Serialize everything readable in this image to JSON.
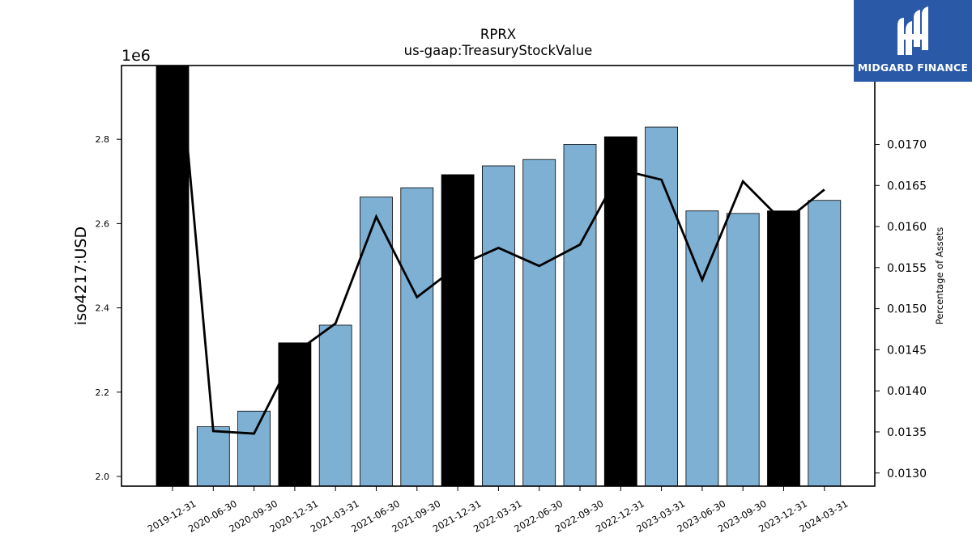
{
  "chart_data": {
    "type": "bar",
    "title": "RPRX",
    "subtitle": "us-gaap:TreasuryStockValue",
    "ylabel": "iso4217:USD",
    "y_offset_label": "1e6",
    "y2label": "Percentage of Assets",
    "categories": [
      "2019-12-31",
      "2020-06-30",
      "2020-09-30",
      "2020-12-31",
      "2021-03-31",
      "2021-06-30",
      "2021-09-30",
      "2021-12-31",
      "2022-03-31",
      "2022-06-30",
      "2022-09-30",
      "2022-12-31",
      "2023-03-31",
      "2023-06-30",
      "2023-09-30",
      "2023-12-31",
      "2024-03-31"
    ],
    "series": [
      {
        "type": "bar",
        "values": [
          3020000,
          2118000,
          2155000,
          2317000,
          2359000,
          2663000,
          2685000,
          2716000,
          2737000,
          2752000,
          2788000,
          2806000,
          2829000,
          2630000,
          2624000,
          2630000,
          2655000
        ],
        "highlight": [
          true,
          false,
          false,
          true,
          false,
          false,
          false,
          true,
          false,
          false,
          false,
          true,
          false,
          false,
          false,
          true,
          false
        ],
        "color": "#7eb0d4",
        "highlight_color": "#000000"
      },
      {
        "type": "line",
        "axis": "right",
        "values": [
          0.019,
          0.01351,
          0.01348,
          0.01446,
          0.01482,
          0.01612,
          0.01514,
          0.01552,
          0.01574,
          0.01552,
          0.01578,
          0.01669,
          0.01657,
          0.01535,
          0.01655,
          0.01605,
          0.01645
        ],
        "color": "#000000"
      }
    ],
    "ylim": [
      1977000,
      2975000
    ],
    "y_ticks": [
      2000000,
      2200000,
      2400000,
      2600000,
      2800000
    ],
    "y_tick_labels": [
      "2.0",
      "2.2",
      "2.4",
      "2.6",
      "2.8"
    ],
    "y2lim": [
      0.01284,
      0.01796
    ],
    "y2_ticks": [
      0.013,
      0.0135,
      0.014,
      0.0145,
      0.015,
      0.0155,
      0.016,
      0.0165,
      0.017
    ],
    "y2_tick_labels": [
      "0.0130",
      "0.0135",
      "0.0140",
      "0.0145",
      "0.0150",
      "0.0155",
      "0.0160",
      "0.0165",
      "0.0170"
    ],
    "grid": false
  },
  "brand": {
    "name": "MIDGARD FINANCE",
    "icon": "midgard-logo-icon",
    "bg_color": "#2a59a8"
  }
}
